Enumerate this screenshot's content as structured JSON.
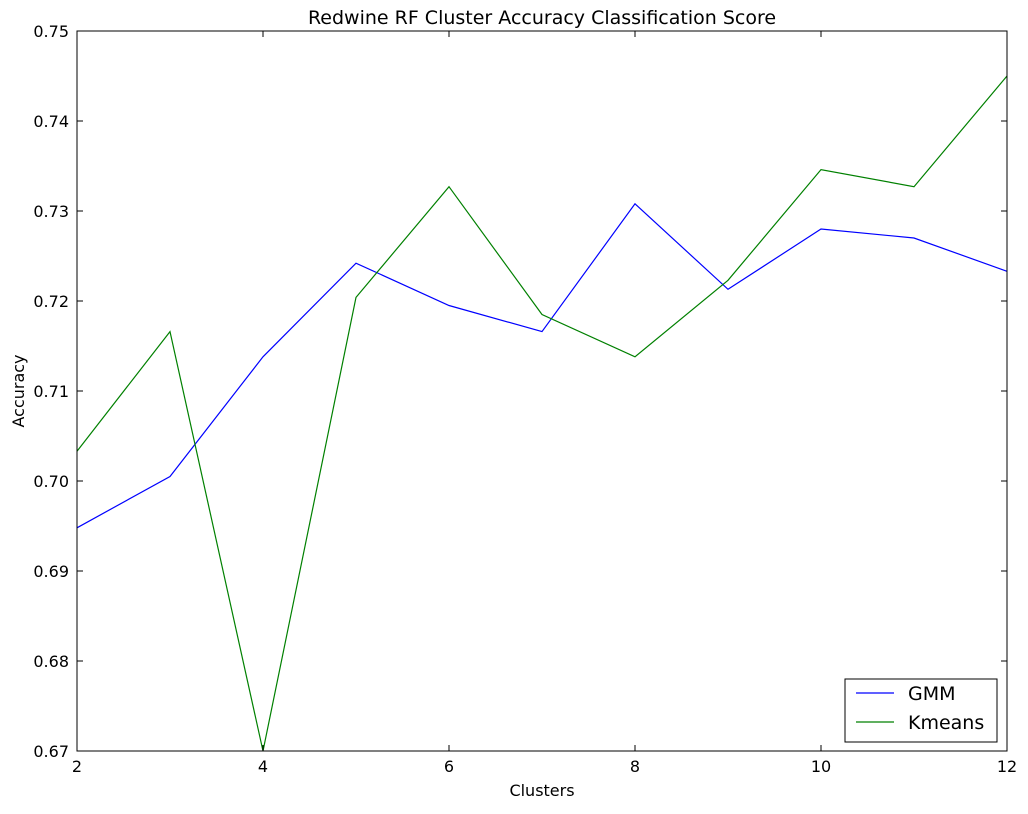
{
  "chart_data": {
    "type": "line",
    "title": "Redwine RF Cluster Accuracy Classification Score",
    "xlabel": "Clusters",
    "ylabel": "Accuracy",
    "xlim": [
      2,
      12
    ],
    "ylim": [
      0.67,
      0.75
    ],
    "xticks": [
      2,
      4,
      6,
      8,
      10,
      12
    ],
    "xtick_labels": [
      "2",
      "4",
      "6",
      "8",
      "10",
      "12"
    ],
    "yticks": [
      0.67,
      0.68,
      0.69,
      0.7,
      0.71,
      0.72,
      0.73,
      0.74,
      0.75
    ],
    "ytick_labels": [
      "0.67",
      "0.68",
      "0.69",
      "0.70",
      "0.71",
      "0.72",
      "0.73",
      "0.74",
      "0.75"
    ],
    "grid": false,
    "legend_position": "lower-right",
    "x": [
      2,
      3,
      4,
      5,
      6,
      7,
      8,
      9,
      10,
      11,
      12
    ],
    "series": [
      {
        "name": "GMM",
        "color": "#0000ff",
        "values": [
          0.6948,
          0.7005,
          0.7138,
          0.7242,
          0.7195,
          0.7166,
          0.7308,
          0.7213,
          0.728,
          0.727,
          0.7233
        ]
      },
      {
        "name": "Kmeans",
        "color": "#008000",
        "values": [
          0.7033,
          0.7166,
          0.67,
          0.7204,
          0.7327,
          0.7185,
          0.7138,
          0.7223,
          0.7346,
          0.7327,
          0.745
        ]
      }
    ]
  }
}
